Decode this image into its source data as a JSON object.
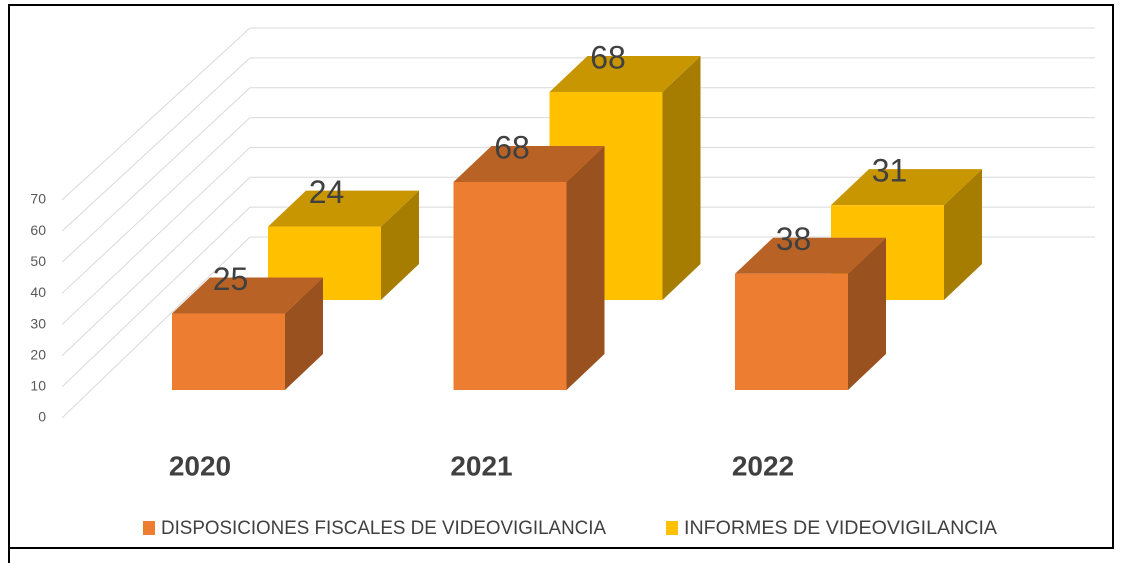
{
  "chart_data": {
    "type": "bar",
    "categories": [
      "2020",
      "2021",
      "2022"
    ],
    "series": [
      {
        "name": "DISPOSICIONES FISCALES DE VIDEOVIGILANCIA",
        "color": "#ed7d31",
        "values": [
          25,
          68,
          38
        ]
      },
      {
        "name": "INFORMES DE VIDEOVIGILANCIA",
        "color": "#ffc000",
        "values": [
          24,
          68,
          31
        ]
      }
    ],
    "ylim": [
      0,
      70
    ],
    "yticks": [
      0,
      10,
      20,
      30,
      40,
      50,
      60,
      70
    ],
    "grid": true,
    "legend": "bottom"
  }
}
